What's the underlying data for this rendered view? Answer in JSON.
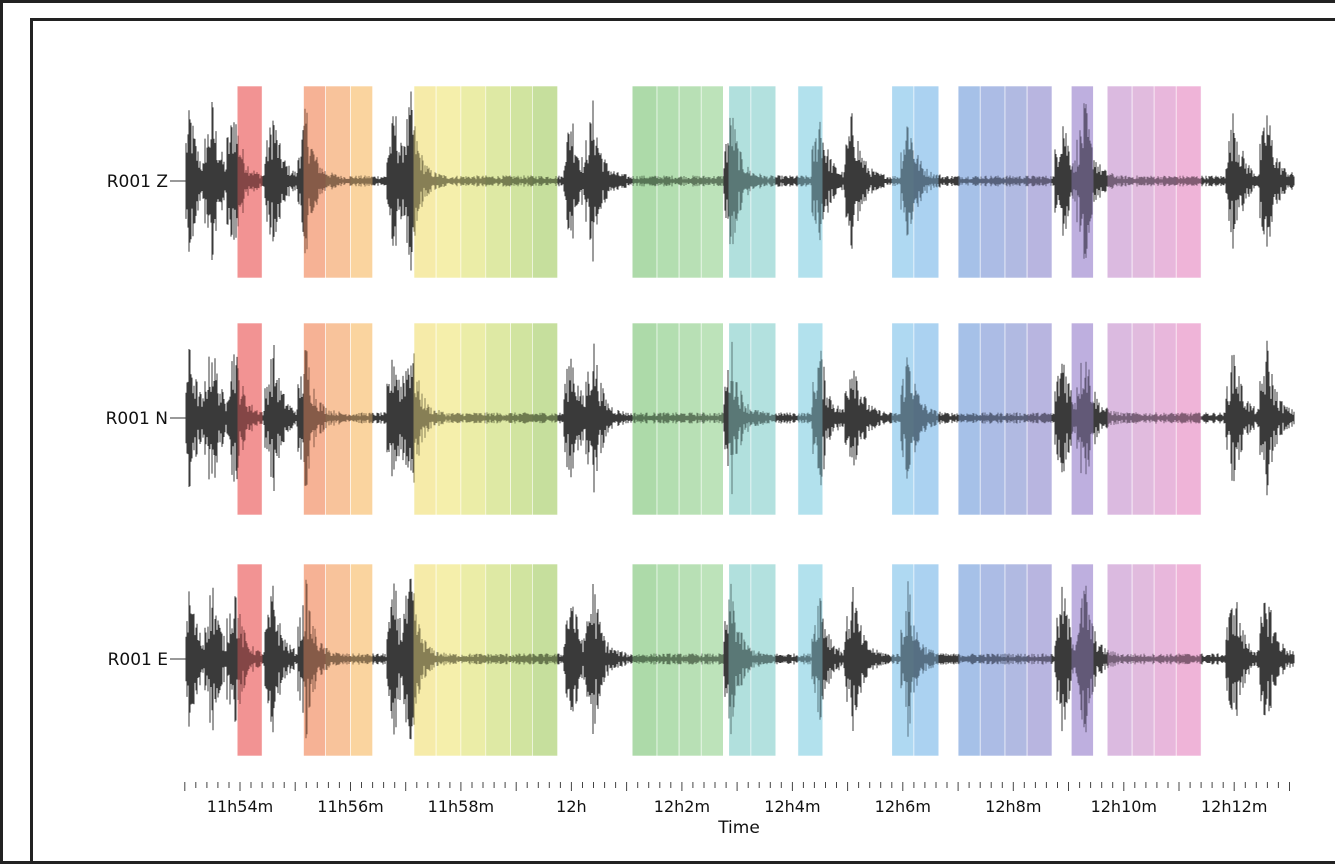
{
  "chart_data": {
    "type": "line",
    "title": "",
    "xlabel": "Time",
    "ylabel": "",
    "x_ticks": [
      {
        "minutes": 714,
        "label": "11h54m"
      },
      {
        "minutes": 716,
        "label": "11h56m"
      },
      {
        "minutes": 718,
        "label": "11h58m"
      },
      {
        "minutes": 720,
        "label": "12h"
      },
      {
        "minutes": 722,
        "label": "12h2m"
      },
      {
        "minutes": 724,
        "label": "12h4m"
      },
      {
        "minutes": 726,
        "label": "12h6m"
      },
      {
        "minutes": 728,
        "label": "12h8m"
      },
      {
        "minutes": 730,
        "label": "12h10m"
      },
      {
        "minutes": 732,
        "label": "12h12m"
      }
    ],
    "xlim_minutes": [
      712.95,
      733.1
    ],
    "grid": false,
    "channels": [
      {
        "name": "R001 Z"
      },
      {
        "name": "R001 N"
      },
      {
        "name": "R001 E"
      }
    ],
    "windows": [
      {
        "start": 713.95,
        "end": 714.4,
        "color": "#f08080"
      },
      {
        "start": 715.15,
        "end": 715.55,
        "color": "#f4a582"
      },
      {
        "start": 715.55,
        "end": 716.0,
        "color": "#f7b98a"
      },
      {
        "start": 716.0,
        "end": 716.4,
        "color": "#f9cc8e"
      },
      {
        "start": 717.15,
        "end": 717.55,
        "color": "#f5e79a"
      },
      {
        "start": 717.55,
        "end": 718.0,
        "color": "#f3ec9c"
      },
      {
        "start": 718.0,
        "end": 718.45,
        "color": "#e8ea98"
      },
      {
        "start": 718.45,
        "end": 718.9,
        "color": "#d8e594"
      },
      {
        "start": 718.9,
        "end": 719.3,
        "color": "#c9df8f"
      },
      {
        "start": 719.3,
        "end": 719.75,
        "color": "#bcd98c"
      },
      {
        "start": 721.1,
        "end": 721.55,
        "color": "#9fd49a"
      },
      {
        "start": 721.55,
        "end": 721.95,
        "color": "#a6d8a2"
      },
      {
        "start": 721.95,
        "end": 722.35,
        "color": "#acdba8"
      },
      {
        "start": 722.35,
        "end": 722.75,
        "color": "#b1deae"
      },
      {
        "start": 722.85,
        "end": 723.25,
        "color": "#a3dad7"
      },
      {
        "start": 723.25,
        "end": 723.7,
        "color": "#a6dcd9"
      },
      {
        "start": 724.1,
        "end": 724.55,
        "color": "#a4dcea"
      },
      {
        "start": 725.8,
        "end": 726.2,
        "color": "#a1d2f0"
      },
      {
        "start": 726.2,
        "end": 726.65,
        "color": "#9ccaee"
      },
      {
        "start": 727.0,
        "end": 727.4,
        "color": "#97b6e4"
      },
      {
        "start": 727.4,
        "end": 727.85,
        "color": "#9eb0e1"
      },
      {
        "start": 727.85,
        "end": 728.25,
        "color": "#a3aedd"
      },
      {
        "start": 728.25,
        "end": 728.7,
        "color": "#aca8da"
      },
      {
        "start": 729.05,
        "end": 729.45,
        "color": "#b3a1d9"
      },
      {
        "start": 729.7,
        "end": 730.15,
        "color": "#d5aedb"
      },
      {
        "start": 730.15,
        "end": 730.55,
        "color": "#dcafd8"
      },
      {
        "start": 730.55,
        "end": 730.95,
        "color": "#e4aad6"
      },
      {
        "start": 730.95,
        "end": 731.4,
        "color": "#eca7d1"
      }
    ],
    "trace_color": "#3a3a3a"
  }
}
